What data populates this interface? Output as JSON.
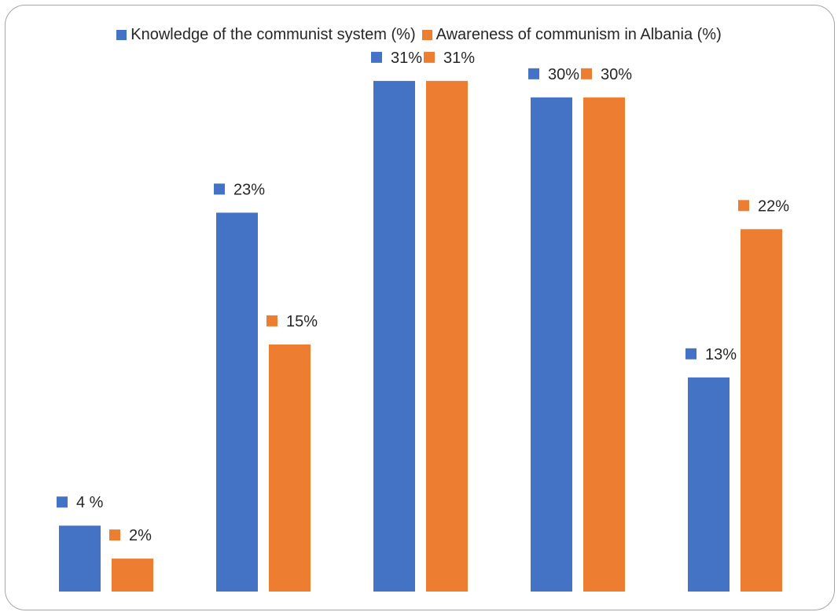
{
  "chart_data": {
    "type": "bar",
    "title": "",
    "xlabel": "",
    "ylabel": "",
    "categories": [
      "",
      "",
      "",
      "",
      ""
    ],
    "ylim": [
      0,
      33
    ],
    "grid": false,
    "legend_position": "top",
    "series": [
      {
        "name": "Knowledge of the communist system (%)",
        "color": "#4472C4",
        "values": [
          4,
          23,
          31,
          30,
          13
        ],
        "labels": [
          "4 %",
          "23%",
          "31%",
          "30%",
          "13%"
        ]
      },
      {
        "name": "Awareness of communism in Albania (%)",
        "color": "#ED7D31",
        "values": [
          2,
          15,
          31,
          30,
          22
        ],
        "labels": [
          "2%",
          "15%",
          "31%",
          "30%",
          "22%"
        ]
      }
    ]
  }
}
